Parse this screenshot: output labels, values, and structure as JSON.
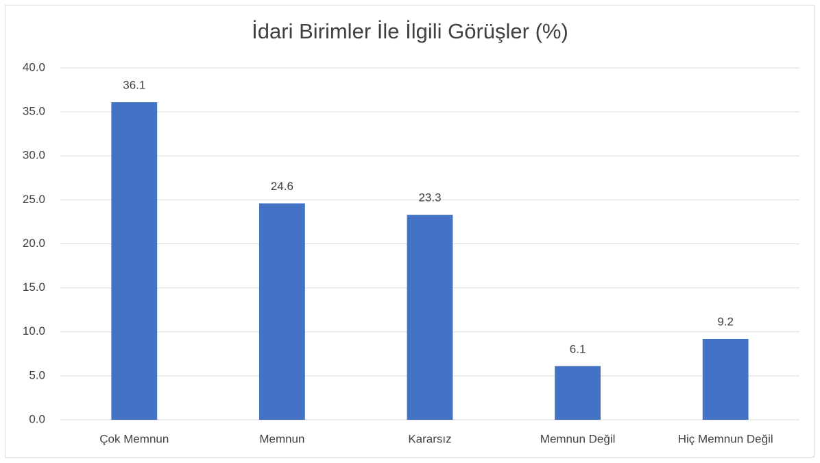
{
  "chart_data": {
    "type": "bar",
    "title": "İdari Birimler İle İlgili Görüşler (%)",
    "categories": [
      "Çok Memnun",
      "Memnun",
      "Kararsız",
      "Memnun Değil",
      "Hiç Memnun Değil"
    ],
    "values": [
      36.1,
      24.6,
      23.3,
      6.1,
      9.2
    ],
    "color": "#4472c4",
    "ylim": [
      0,
      40
    ],
    "yticks": [
      {
        "value": 0,
        "label": "0.0"
      },
      {
        "value": 5,
        "label": "5.0"
      },
      {
        "value": 10,
        "label": "10.0"
      },
      {
        "value": 15,
        "label": "15.0"
      },
      {
        "value": 20,
        "label": "20.0"
      },
      {
        "value": 25,
        "label": "25.0"
      },
      {
        "value": 30,
        "label": "30.0"
      },
      {
        "value": 35,
        "label": "35.0"
      },
      {
        "value": 40,
        "label": "40.0"
      }
    ],
    "grid": true
  }
}
